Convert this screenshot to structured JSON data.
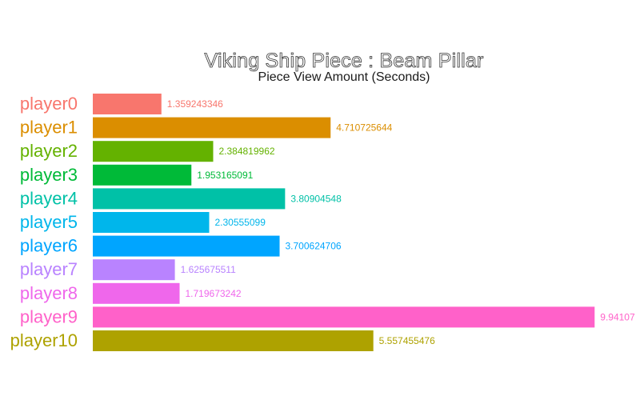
{
  "chart_data": {
    "type": "bar",
    "orientation": "horizontal",
    "title": "Viking Ship Piece : Beam Pillar",
    "subtitle": "Piece View Amount (Seconds)",
    "xlabel": "",
    "ylabel": "",
    "grid": false,
    "legend": "none",
    "xlim": [
      0,
      9.94
    ],
    "categories": [
      "player0",
      "player1",
      "player2",
      "player3",
      "player4",
      "player5",
      "player6",
      "player7",
      "player8",
      "player9",
      "player10"
    ],
    "values": [
      1.359243346,
      4.710725644,
      2.384819962,
      1.953165091,
      3.80904548,
      2.30555099,
      3.700624706,
      1.625675511,
      1.719673242,
      9.94107,
      5.557455476
    ],
    "value_labels": [
      "1.359243346",
      "4.710725644",
      "2.384819962",
      "1.953165091",
      "3.80904548",
      "2.30555099",
      "3.700624706",
      "1.625675511",
      "1.719673242",
      "9.94107",
      "5.557455476"
    ],
    "colors": [
      "#F8766D",
      "#DB8E00",
      "#64B200",
      "#00BA38",
      "#00C1A7",
      "#00B6EB",
      "#00A5FF",
      "#B983FF",
      "#EF67EB",
      "#FF61C9",
      "#AEA200"
    ]
  }
}
